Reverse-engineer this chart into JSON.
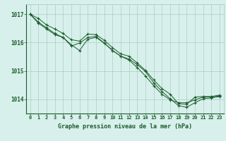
{
  "bg_color": "#d8f0ec",
  "grid_color": "#aaccc6",
  "line_color": "#1a5c2a",
  "marker_color": "#1a5c2a",
  "title": "Graphe pression niveau de la mer (hPa)",
  "title_color": "#1a5c2a",
  "ylim": [
    1013.5,
    1017.35
  ],
  "xlim": [
    -0.5,
    23.5
  ],
  "yticks": [
    1014,
    1015,
    1016,
    1017
  ],
  "xticks": [
    0,
    1,
    2,
    3,
    4,
    5,
    6,
    7,
    8,
    9,
    10,
    11,
    12,
    13,
    14,
    15,
    16,
    17,
    18,
    19,
    20,
    21,
    22,
    23
  ],
  "series": [
    [
      1017.0,
      1016.85,
      1016.62,
      1016.48,
      1016.32,
      1016.1,
      1016.05,
      1016.3,
      1016.28,
      1016.08,
      1015.82,
      1015.6,
      1015.52,
      1015.28,
      1015.02,
      1014.68,
      1014.38,
      1014.18,
      1013.85,
      1013.82,
      1014.08,
      1014.1,
      1014.1,
      1014.15
    ],
    [
      1017.0,
      1016.72,
      1016.52,
      1016.32,
      1016.18,
      1015.92,
      1015.72,
      1016.12,
      1016.18,
      1015.98,
      1015.72,
      1015.52,
      1015.42,
      1015.22,
      1014.98,
      1014.58,
      1014.28,
      1014.02,
      1013.78,
      1013.72,
      1013.88,
      1014.02,
      1014.05,
      1014.1
    ],
    [
      1017.0,
      1016.68,
      1016.48,
      1016.28,
      1016.18,
      1015.88,
      1015.98,
      1016.18,
      1016.22,
      1015.98,
      1015.72,
      1015.52,
      1015.38,
      1015.12,
      1014.82,
      1014.48,
      1014.18,
      1013.98,
      1013.88,
      1013.88,
      1013.98,
      1014.08,
      1014.08,
      1014.12
    ]
  ]
}
